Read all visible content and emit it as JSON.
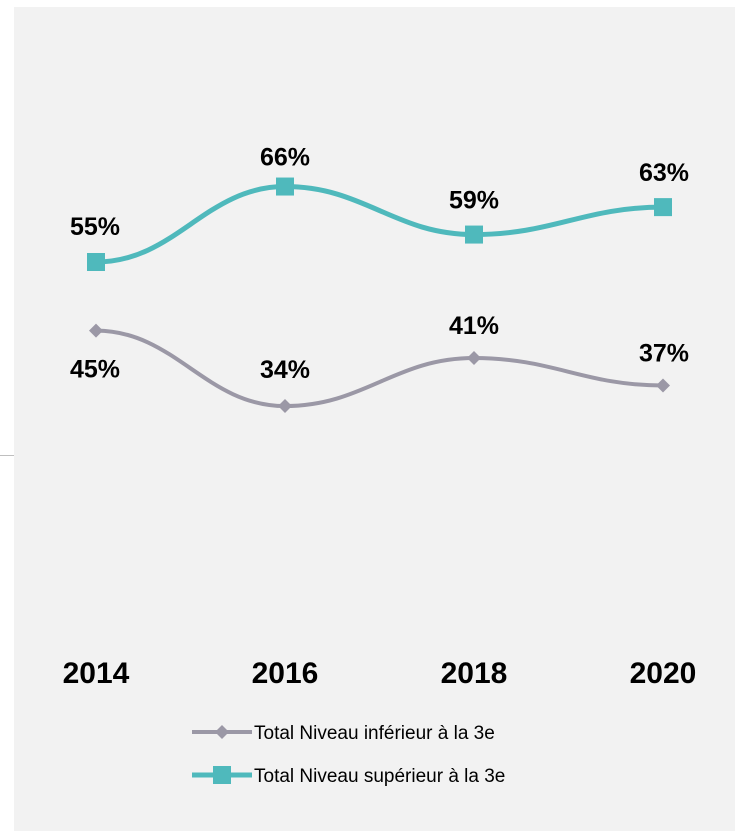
{
  "chart_data": {
    "type": "line",
    "smooth": true,
    "title": "",
    "xlabel": "",
    "ylabel": "",
    "categories": [
      "2014",
      "2016",
      "2018",
      "2020"
    ],
    "ylim": [
      0,
      100
    ],
    "grid": false,
    "legend_position": "bottom",
    "series": [
      {
        "name": "Total Niveau inférieur à la 3e",
        "values": [
          45,
          34,
          41,
          37
        ],
        "labels": [
          "45%",
          "34%",
          "41%",
          "37%"
        ],
        "color": "#9b98a6",
        "marker": "diamond"
      },
      {
        "name": "Total Niveau supérieur à la 3e",
        "values": [
          55,
          66,
          59,
          63
        ],
        "labels": [
          "55%",
          "66%",
          "59%",
          "63%"
        ],
        "color": "#4fb9bc",
        "marker": "square"
      }
    ]
  },
  "colors": {
    "background": "#f2f2f2"
  }
}
